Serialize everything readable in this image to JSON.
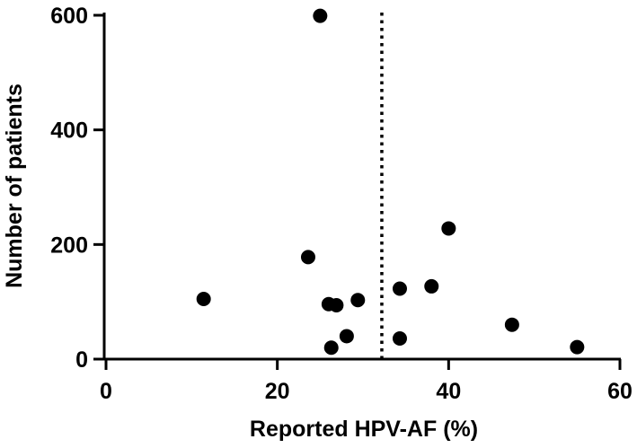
{
  "chart_data": {
    "type": "scatter",
    "xlabel": "Reported HPV-AF (%)",
    "ylabel": "Number of patients",
    "xlim": [
      0,
      60
    ],
    "ylim": [
      0,
      600
    ],
    "xticks": [
      "0",
      "20",
      "40",
      "60"
    ],
    "yticks": [
      "0",
      "200",
      "400",
      "600"
    ],
    "grid": false,
    "reference_line": {
      "orientation": "vertical",
      "x": 32.2,
      "style": "dotted"
    },
    "series": [
      {
        "points": [
          {
            "x": 11.4,
            "y": 105
          },
          {
            "x": 23.6,
            "y": 178
          },
          {
            "x": 25.0,
            "y": 599
          },
          {
            "x": 26.0,
            "y": 96
          },
          {
            "x": 26.3,
            "y": 20
          },
          {
            "x": 26.9,
            "y": 94
          },
          {
            "x": 28.1,
            "y": 40
          },
          {
            "x": 29.4,
            "y": 103
          },
          {
            "x": 34.3,
            "y": 123
          },
          {
            "x": 34.3,
            "y": 36
          },
          {
            "x": 38.0,
            "y": 127
          },
          {
            "x": 40.0,
            "y": 228
          },
          {
            "x": 47.4,
            "y": 60
          },
          {
            "x": 55.0,
            "y": 21
          }
        ]
      }
    ]
  }
}
